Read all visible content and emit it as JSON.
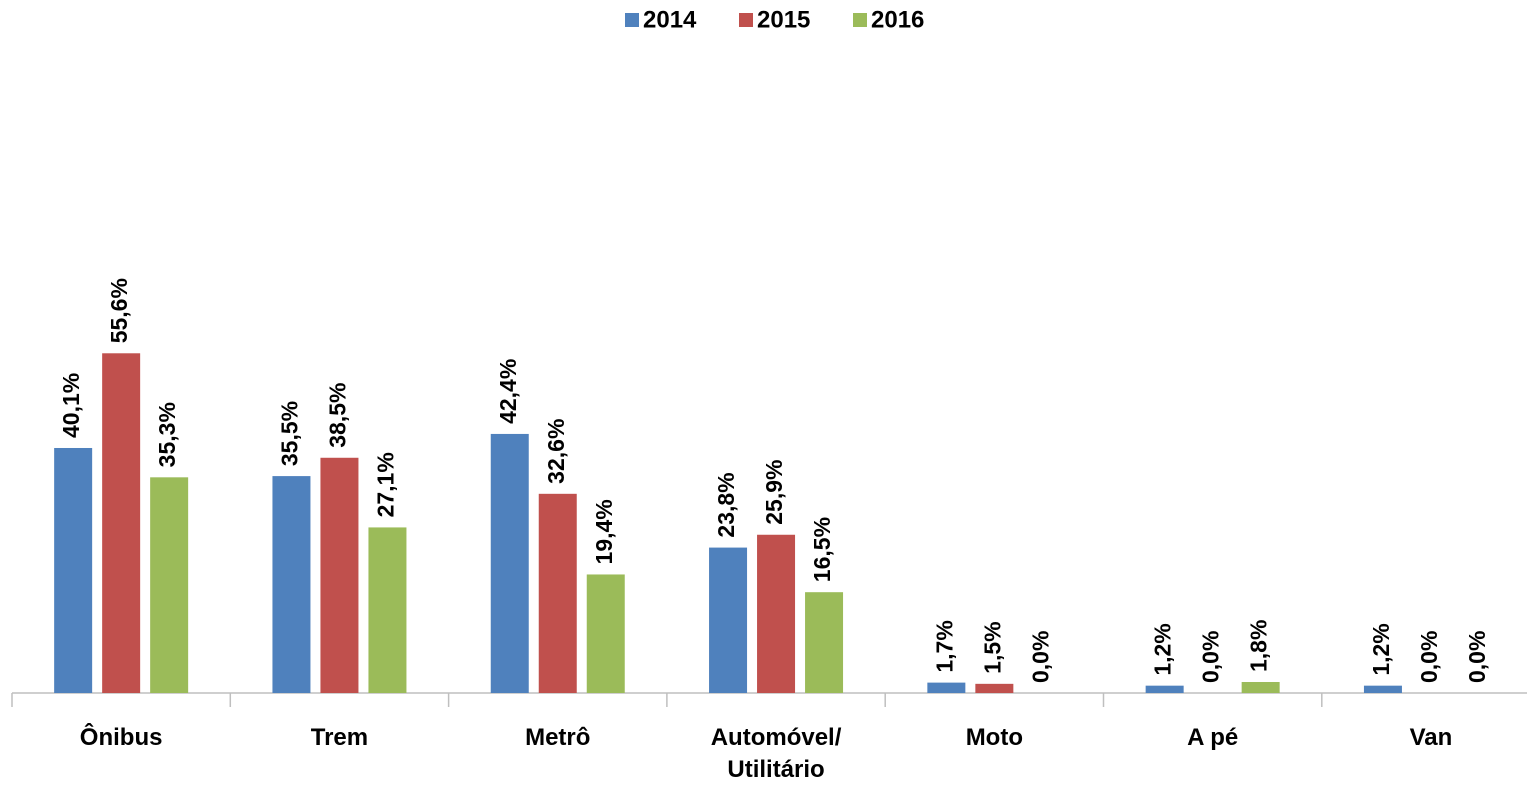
{
  "chart_data": {
    "type": "bar",
    "categories": [
      "Ônibus",
      "Trem",
      "Metrô",
      "Automóvel/ Utilitário",
      "Moto",
      "A pé",
      "Van"
    ],
    "series": [
      {
        "name": "2014",
        "color": "#4f81bd",
        "values": [
          40.1,
          35.5,
          42.4,
          23.8,
          1.7,
          1.2,
          1.2
        ],
        "value_labels": [
          "40,1%",
          "35,5%",
          "42,4%",
          "23,8%",
          "1,7%",
          "1,2%",
          "1,2%"
        ]
      },
      {
        "name": "2015",
        "color": "#c0504d",
        "values": [
          55.6,
          38.5,
          32.6,
          25.9,
          1.5,
          0.0,
          0.0
        ],
        "value_labels": [
          "55,6%",
          "38,5%",
          "32,6%",
          "25,9%",
          "1,5%",
          "0,0%",
          "0,0%"
        ]
      },
      {
        "name": "2016",
        "color": "#9bbb59",
        "values": [
          35.3,
          27.1,
          19.4,
          16.5,
          0.0,
          1.8,
          0.0
        ],
        "value_labels": [
          "35,3%",
          "27,1%",
          "19,4%",
          "16,5%",
          "0,0%",
          "1,8%",
          "0,0%"
        ]
      }
    ],
    "ylim": [
      0,
      100
    ],
    "legend": "top"
  }
}
